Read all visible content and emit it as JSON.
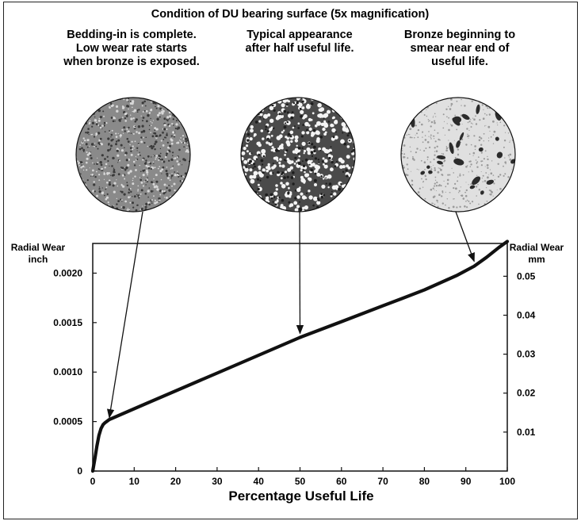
{
  "header": {
    "title": "Condition of DU bearing surface (5x magnification)",
    "captions": [
      [
        "Bedding-in is complete.",
        "Low wear rate starts",
        "when bronze is exposed."
      ],
      [
        "Typical appearance",
        "after half useful life."
      ],
      [
        "Bronze beginning to",
        "smear near end of",
        "useful life."
      ]
    ]
  },
  "micrographs": [
    {
      "name": "micrograph-bedding-in",
      "tone": "#8a8a8a",
      "pointer_x": 4,
      "pointer_y": 0.0005
    },
    {
      "name": "micrograph-half-life",
      "tone": "#4a4a4a",
      "pointer_x": 50,
      "pointer_y": 0.00135
    },
    {
      "name": "micrograph-end-of-life",
      "tone": "#e0e0e0",
      "pointer_x": 92,
      "pointer_y": 0.00208
    }
  ],
  "chart_data": {
    "type": "line",
    "xlabel": "Percentage Useful Life",
    "ylabel_left": [
      "Radial Wear",
      "inch"
    ],
    "ylabel_right": [
      "Radial Wear",
      "mm"
    ],
    "xlim": [
      0,
      100
    ],
    "ylim": [
      0,
      0.0023
    ],
    "x_ticks": [
      0,
      10,
      20,
      30,
      40,
      50,
      60,
      70,
      80,
      90,
      100
    ],
    "y_ticks_left": [
      "0",
      "0.0005",
      "0.0010",
      "0.0015",
      "0.0020"
    ],
    "y_ticks_left_values": [
      0,
      0.0005,
      0.001,
      0.0015,
      0.002
    ],
    "y_ticks_right": [
      "0.01",
      "0.02",
      "0.03",
      "0.04",
      "0.05"
    ],
    "y_ticks_right_values": [
      0.01,
      0.02,
      0.03,
      0.04,
      0.05
    ],
    "grid": false,
    "series": [
      {
        "x": [
          0,
          0.5,
          1,
          1.5,
          2,
          2.5,
          3,
          4,
          10,
          20,
          30,
          40,
          50,
          60,
          70,
          80,
          88,
          92,
          95,
          98,
          100
        ],
        "y": [
          0,
          0.00012,
          0.00025,
          0.00036,
          0.00043,
          0.00047,
          0.00049,
          0.00052,
          0.00063,
          0.00081,
          0.00099,
          0.00117,
          0.00135,
          0.00151,
          0.00167,
          0.00183,
          0.00198,
          0.00207,
          0.00216,
          0.00226,
          0.00232
        ]
      }
    ]
  }
}
